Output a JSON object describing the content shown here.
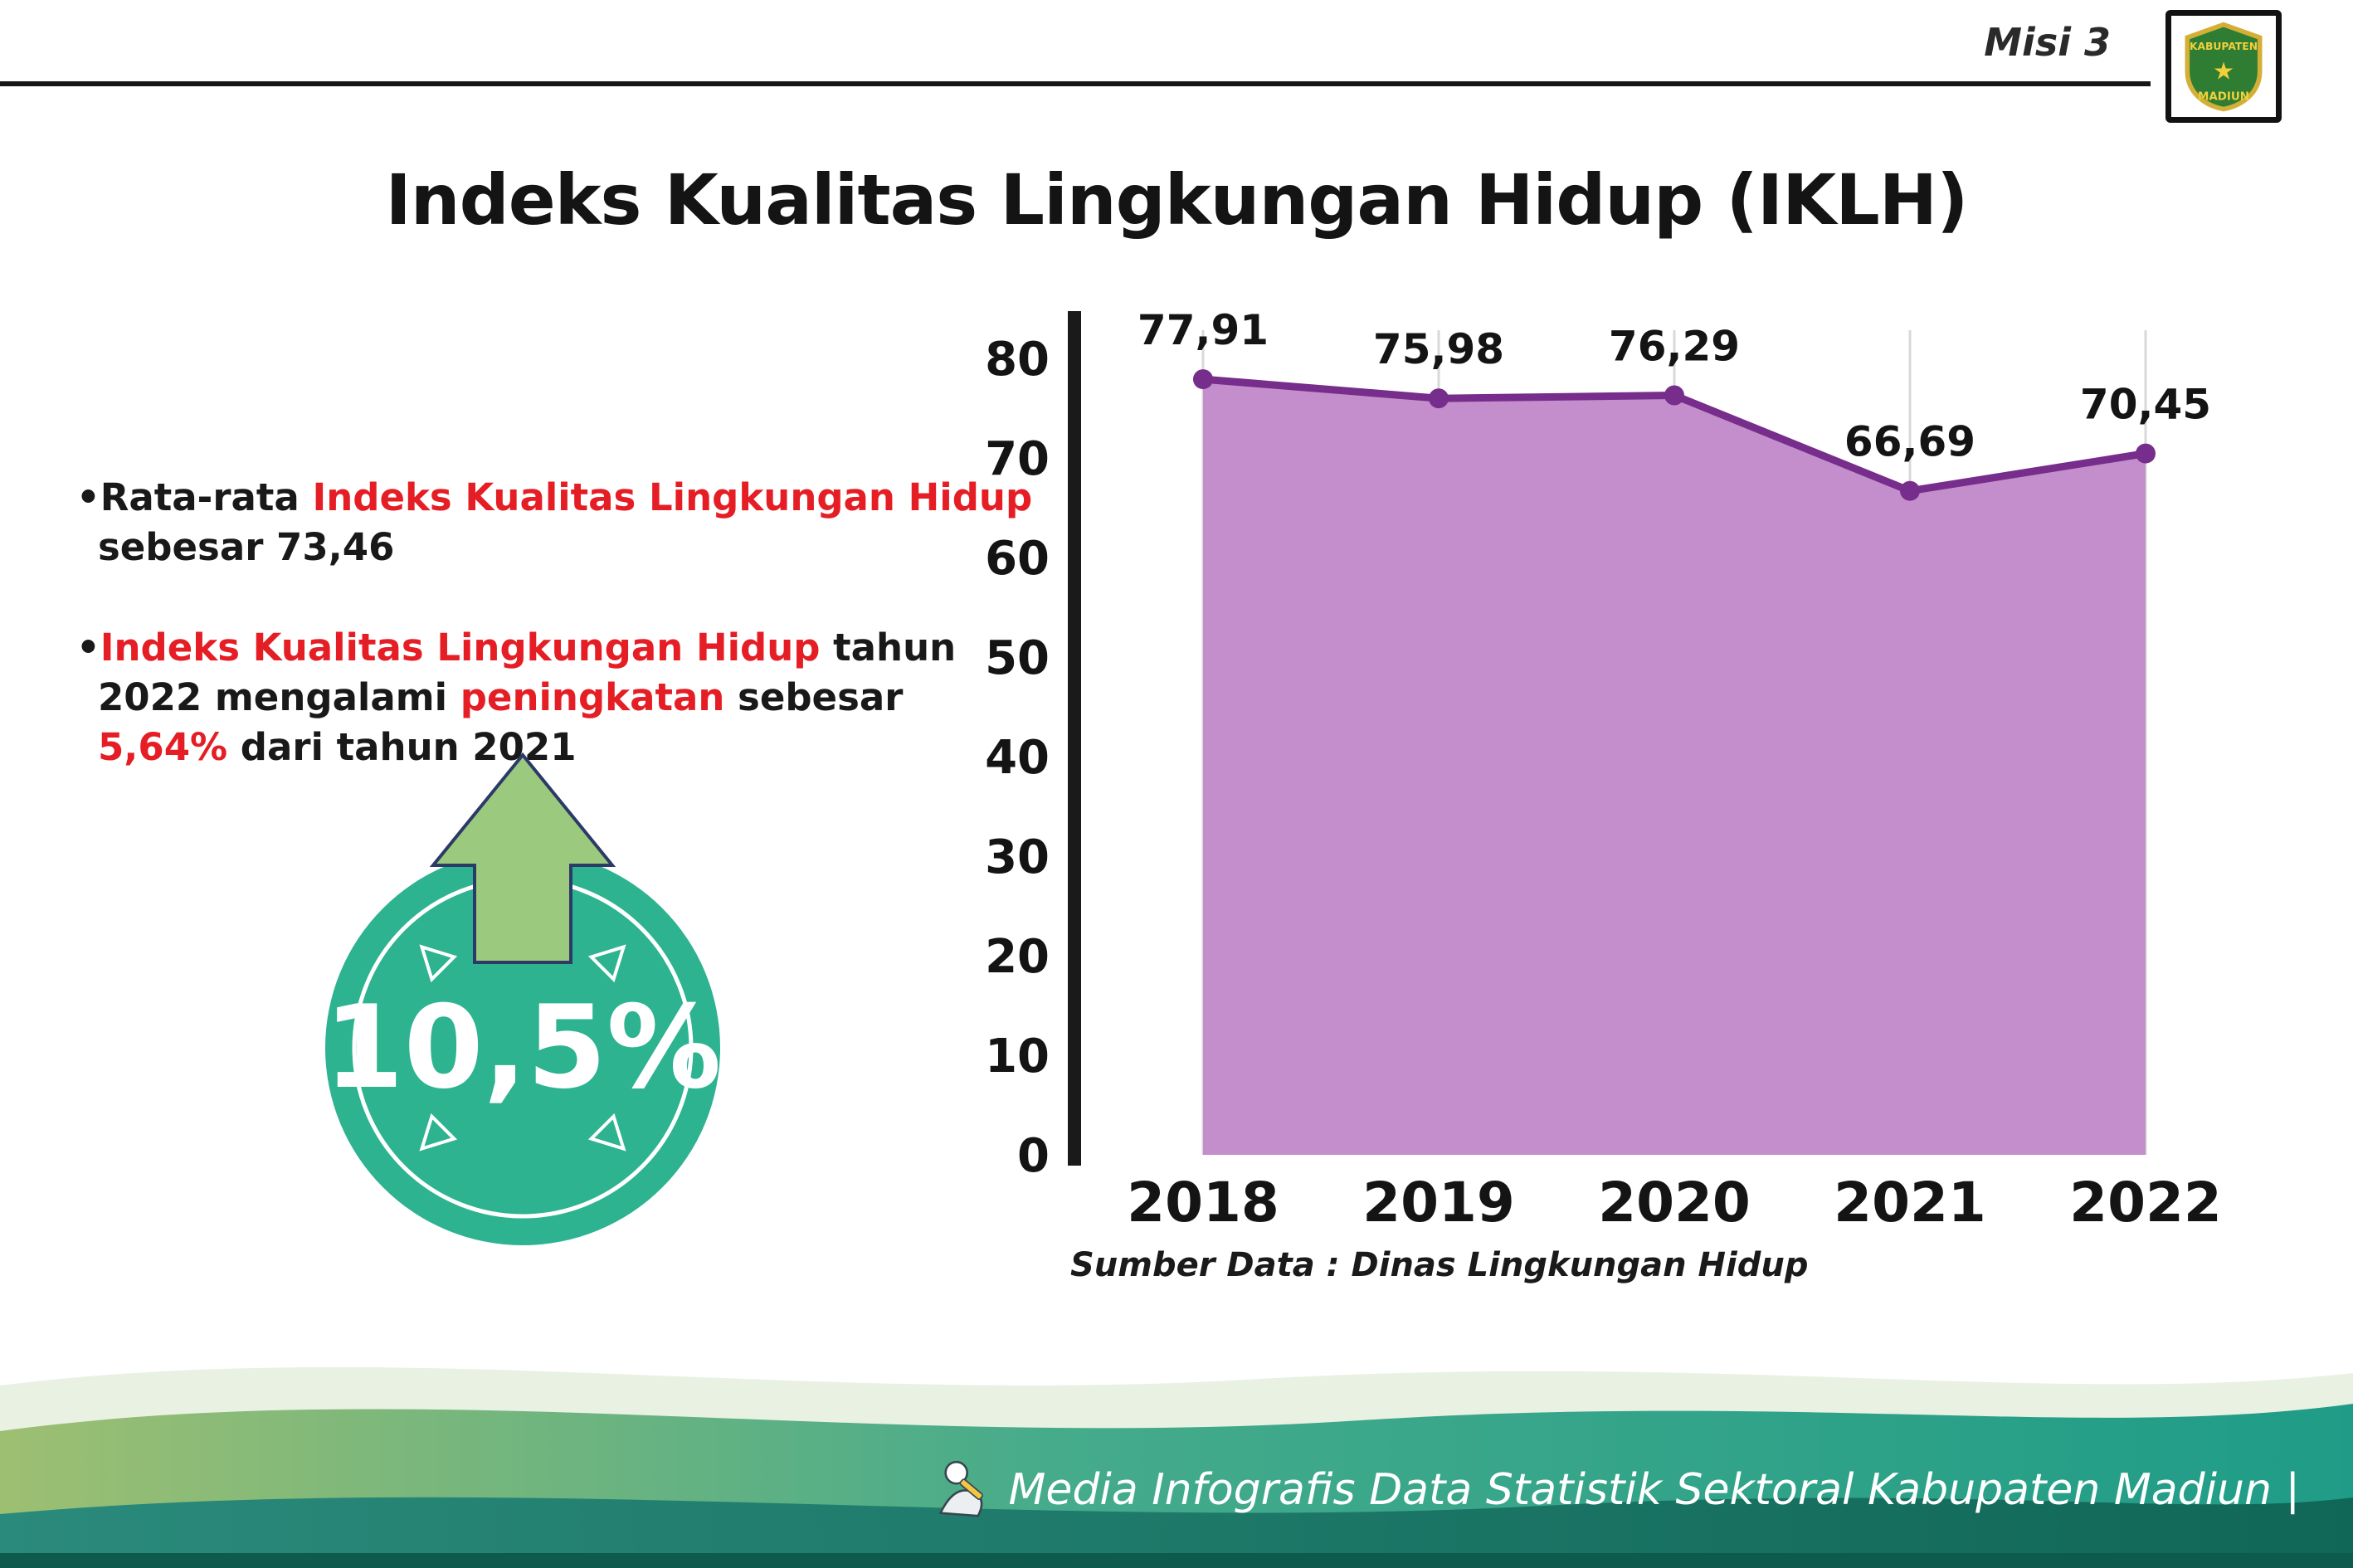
{
  "header": {
    "misi_label": "Misi 3",
    "title": "Indeks Kualitas Lingkungan Hidup (IKLH)",
    "logo": {
      "text_top": "KABUPATEN",
      "text_bottom": "MADIUN",
      "star": "★"
    }
  },
  "bullets": [
    {
      "marker": "•",
      "parts": [
        {
          "text": "Rata-rata ",
          "emphasis": false
        },
        {
          "text": "Indeks Kualitas Lingkungan Hidup",
          "emphasis": true
        },
        {
          "text": " sebesar 73,46",
          "emphasis": false
        }
      ]
    },
    {
      "marker": "•",
      "parts": [
        {
          "text": "Indeks Kualitas Lingkungan Hidup",
          "emphasis": true
        },
        {
          "text": " tahun 2022 mengalami ",
          "emphasis": false
        },
        {
          "text": "peningkatan",
          "emphasis": true
        },
        {
          "text": " sebesar ",
          "emphasis": false
        },
        {
          "text": "5,64%",
          "emphasis": true
        },
        {
          "text": " dari tahun 2021",
          "emphasis": false
        }
      ]
    }
  ],
  "badge": {
    "value": "10,5%"
  },
  "chart_data": {
    "type": "area",
    "title": "Indeks Kualitas Lingkungan Hidup (IKLH)",
    "categories": [
      "2018",
      "2019",
      "2020",
      "2021",
      "2022"
    ],
    "values": [
      77.91,
      75.98,
      76.29,
      66.69,
      70.45
    ],
    "value_labels": [
      "77,91",
      "75,98",
      "76,29",
      "66,69",
      "70,45"
    ],
    "ylim": [
      0,
      80
    ],
    "ytick_step": 10,
    "grid": true,
    "legend": "none",
    "colors": {
      "area_fill": "#c38ecb",
      "line": "#762d8b",
      "point": "#762d8b",
      "gridline": "#d9d9d9",
      "axis": "#1a1a1a"
    }
  },
  "source_note": "Sumber Data : Dinas Lingkungan Hidup",
  "footer": {
    "text": "Media Infografis Data Statistik Sektoral Kabupaten Madiun |"
  },
  "colors": {
    "accent_red": "#e51e25",
    "badge_teal": "#2db390",
    "arrow_green": "#9bc97d"
  }
}
